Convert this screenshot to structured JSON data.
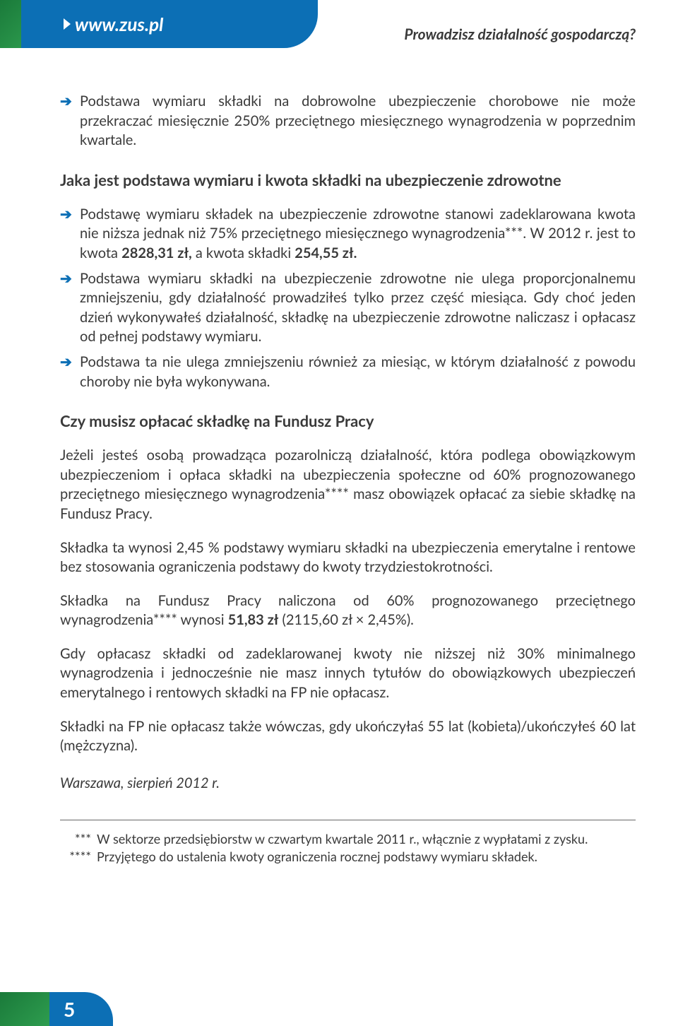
{
  "header": {
    "url": "www.zus.pl",
    "right_text": "Prowadzisz działalność gospodarczą?"
  },
  "bullet1": "Podstawa wymiaru składki na dobrowolne ubezpieczenie chorobowe nie może przekraczać miesięcznie 250% przeciętnego miesięcznego wynagrodzenia w poprzednim kwartale.",
  "heading1": "Jaka jest podstawa wymiaru i kwota składki na ubezpieczenie zdrowotne",
  "bullet2_a": "Podstawę wymiaru składek na ubezpieczenie zdrowotne stanowi zadeklarowana kwota nie niższa jednak niż 75% przeciętnego miesięcznego wynagrodzenia***. W 2012 r. jest to kwota ",
  "bullet2_b": "2828,31 zł,",
  "bullet2_c": " a kwota składki ",
  "bullet2_d": "254,55 zł.",
  "bullet3": "Podstawa wymiaru składki na ubezpieczenie zdrowotne nie ulega proporcjonalnemu zmniejszeniu, gdy działalność prowadziłeś tylko przez część miesiąca. Gdy choć jeden dzień wykonywałeś działalność, składkę na ubezpieczenie zdrowotne naliczasz i opłacasz od pełnej podstawy wymiaru.",
  "bullet4": "Podstawa ta nie ulega zmniejszeniu również za miesiąc, w którym działalność z powodu choroby nie była wykonywana.",
  "heading2": "Czy musisz opłacać składkę na Fundusz Pracy",
  "para1": "Jeżeli jesteś osobą prowadząca pozarolniczą działalność, która podlega obowiązkowym ubezpieczeniom i opłaca składki na ubezpieczenia społeczne od 60% prognozowanego przeciętnego miesięcznego wynagrodzenia**** masz obowiązek opłacać za siebie składkę na Fundusz Pracy.",
  "para2": "Składka ta wynosi 2,45 % podstawy wymiaru składki na ubezpieczenia emerytalne i rentowe bez stosowania ograniczenia podstawy do kwoty trzydziestokrotności.",
  "para3_a": "Składka na Fundusz Pracy naliczona od 60% prognozowanego przeciętnego wynagrodzenia**** wynosi ",
  "para3_b": "51,83 zł",
  "para3_c": " (2115,60 zł × 2,45%).",
  "para4": "Gdy opłacasz składki od zadeklarowanej kwoty nie niższej niż 30% minimalnego wynagrodzenia i jednocześnie nie masz innych tytułów do obowiązkowych ubezpieczeń emerytalnego i rentowych składki na FP nie opłacasz.",
  "para5": "Składki na FP nie opłacasz także wówczas, gdy ukończyłaś 55 lat (kobieta)/ukończyłeś 60 lat (mężczyzna).",
  "date": "Warszawa, sierpień 2012 r.",
  "footnote3_mark": "***",
  "footnote3": "W sektorze przedsiębiorstw w czwartym kwartale 2011 r., włącznie z wypłatami z zysku.",
  "footnote4_mark": "****",
  "footnote4": "Przyjętego do ustalenia kwoty ograniczenia rocznej podstawy wymiaru składek.",
  "page_number": "5"
}
